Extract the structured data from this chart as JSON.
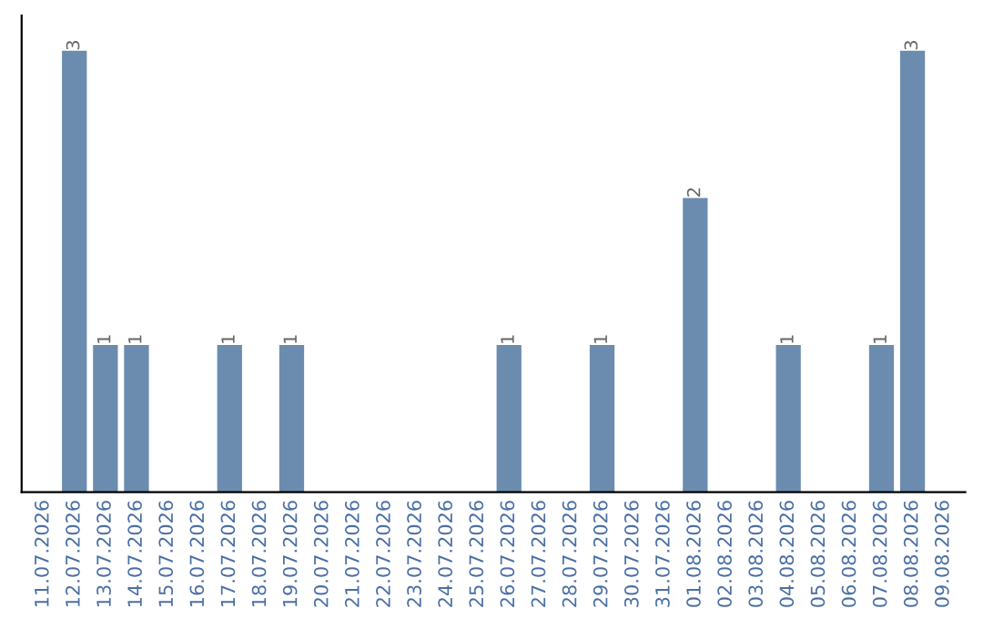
{
  "chart_data": {
    "type": "bar",
    "categories": [
      "11.07.2026",
      "12.07.2026",
      "13.07.2026",
      "14.07.2026",
      "15.07.2026",
      "16.07.2026",
      "17.07.2026",
      "18.07.2026",
      "19.07.2026",
      "20.07.2026",
      "21.07.2026",
      "22.07.2026",
      "23.07.2026",
      "24.07.2026",
      "25.07.2026",
      "26.07.2026",
      "27.07.2026",
      "28.07.2026",
      "29.07.2026",
      "30.07.2026",
      "31.07.2026",
      "01.08.2026",
      "02.08.2026",
      "03.08.2026",
      "04.08.2026",
      "05.08.2026",
      "06.08.2026",
      "07.08.2026",
      "08.08.2026",
      "09.08.2026"
    ],
    "values": [
      0,
      3,
      1,
      1,
      0,
      0,
      1,
      0,
      1,
      0,
      0,
      0,
      0,
      0,
      0,
      1,
      0,
      0,
      1,
      0,
      0,
      2,
      0,
      0,
      1,
      0,
      0,
      1,
      3,
      0
    ],
    "value_labels": [
      null,
      "3",
      "1",
      "1",
      null,
      null,
      "1",
      null,
      "1",
      null,
      null,
      null,
      null,
      null,
      null,
      "1",
      null,
      null,
      "1",
      null,
      null,
      "2",
      null,
      null,
      "1",
      null,
      null,
      "1",
      "3",
      null
    ],
    "color": "#6b8cae",
    "tick_labels": "x",
    "grid": false,
    "legend": false
  }
}
